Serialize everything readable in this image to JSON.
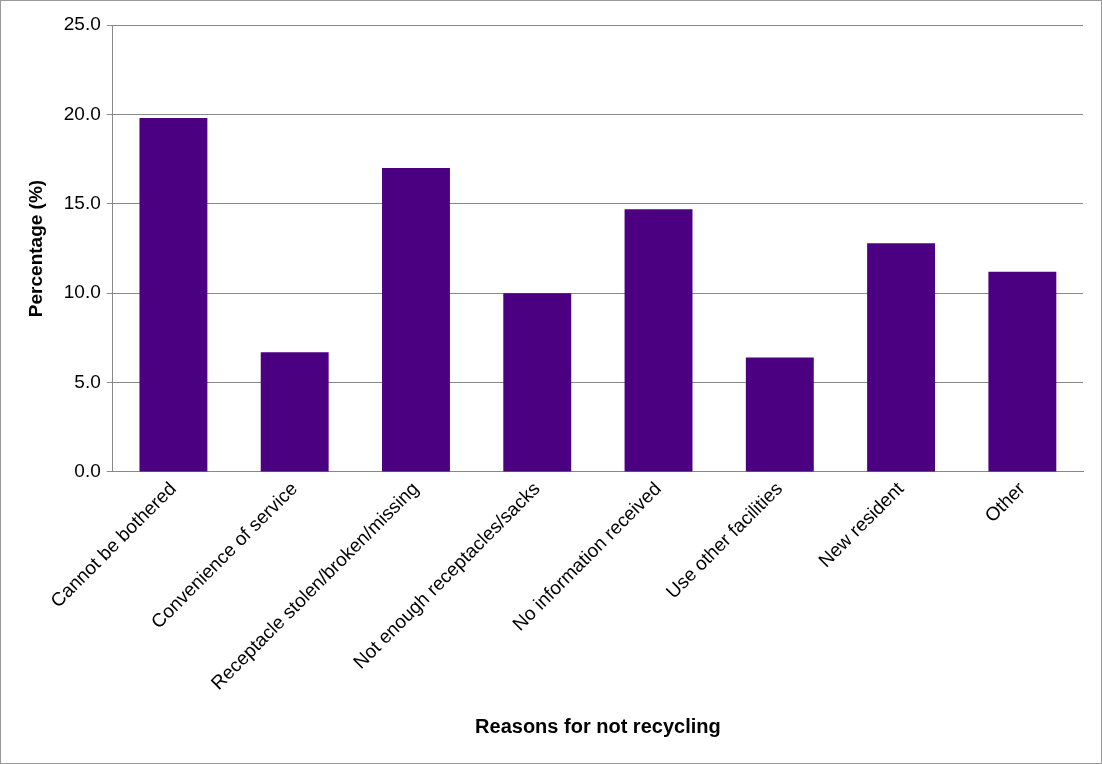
{
  "chart_data": {
    "type": "bar",
    "xlabel": "Reasons for not recycling",
    "ylabel": "Percentage (%)",
    "categories": [
      "Cannot be bothered",
      "Convenience of service",
      "Receptacle stolen/broken/missing",
      "Not enough receptacles/sacks",
      "No information received",
      "Use other facilities",
      "New resident",
      "Other"
    ],
    "values": [
      19.8,
      6.7,
      17.0,
      10.0,
      14.7,
      6.4,
      12.8,
      11.2
    ],
    "color": "#4b0082",
    "ylim": [
      0,
      25
    ],
    "yticks": [
      {
        "value": 0,
        "label": "0.0"
      },
      {
        "value": 5,
        "label": "5.0"
      },
      {
        "value": 10,
        "label": "10.0"
      },
      {
        "value": 15,
        "label": "15.0"
      },
      {
        "value": 20,
        "label": "20.0"
      },
      {
        "value": 25,
        "label": "25.0"
      }
    ],
    "grid": "y",
    "legend": false
  }
}
